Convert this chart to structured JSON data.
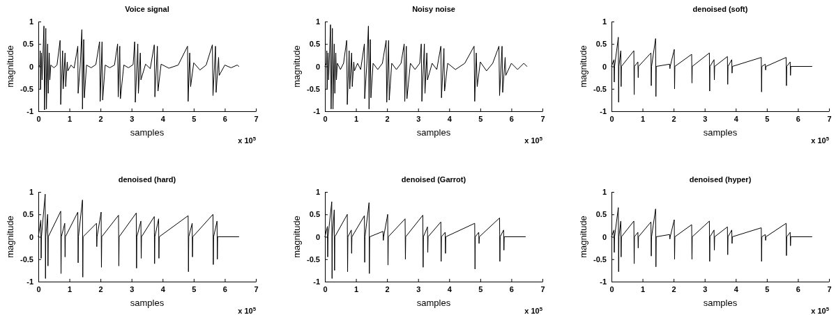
{
  "chart_data": [
    {
      "type": "line",
      "title": "Voice signal",
      "xlabel": "samples",
      "ylabel": "magnitude",
      "annotations": [
        "x 10$^{5}$"
      ],
      "xlim": [
        0,
        7
      ],
      "xticks": [
        0,
        1,
        2,
        3,
        4,
        5,
        6,
        7
      ],
      "ylim": [
        -1,
        1
      ],
      "yticks": [
        -1,
        -0.5,
        0,
        0.5,
        1
      ],
      "x": [
        0,
        0.05,
        0.06,
        0.07,
        0.1,
        0.12,
        0.18,
        0.2,
        0.24,
        0.26,
        0.3,
        0.32,
        0.35,
        0.37,
        0.4,
        0.5,
        0.6,
        0.7,
        0.72,
        0.78,
        0.8,
        0.86,
        0.88,
        0.93,
        0.95,
        1.05,
        1.15,
        1.27,
        1.28,
        1.35,
        1.4,
        1.42,
        1.46,
        1.48,
        1.55,
        1.7,
        1.85,
        1.97,
        1.99,
        2.05,
        2.07,
        2.15,
        2.3,
        2.45,
        2.55,
        2.57,
        2.62,
        2.64,
        2.75,
        2.9,
        3.05,
        3.1,
        3.12,
        3.2,
        3.22,
        3.28,
        3.3,
        3.45,
        3.6,
        3.73,
        3.75,
        3.83,
        3.85,
        3.95,
        4.2,
        4.5,
        4.8,
        4.82,
        4.87,
        4.9,
        5.0,
        5.2,
        5.4,
        5.6,
        5.62,
        5.7,
        5.72,
        5.8,
        5.82,
        6.0,
        6.2,
        6.4,
        6.45
      ],
      "series": [
        {
          "color": "#000000",
          "values": [
            0,
            0.02,
            0.35,
            -0.5,
            0.3,
            -0.3,
            0.9,
            -0.97,
            0.85,
            -0.95,
            0.5,
            -0.6,
            0.3,
            -0.3,
            0.03,
            -0.03,
            0.03,
            0.58,
            -0.85,
            0.35,
            -0.5,
            0.3,
            -0.45,
            0.1,
            -0.1,
            0.03,
            -0.04,
            0.45,
            -0.6,
            0.05,
            0.82,
            -0.95,
            0.6,
            -0.7,
            0.03,
            -0.03,
            0.04,
            0.55,
            -0.78,
            0.55,
            -0.75,
            0.03,
            -0.03,
            0.03,
            0.5,
            -0.68,
            0.45,
            -0.72,
            0.03,
            -0.03,
            0.04,
            0.55,
            -0.8,
            0.5,
            -0.6,
            0.3,
            -0.3,
            0.05,
            -0.05,
            0.48,
            -0.68,
            0.45,
            -0.55,
            0.05,
            -0.04,
            0.03,
            0.45,
            -0.78,
            0.3,
            -0.45,
            0.08,
            -0.08,
            0.03,
            0.48,
            -0.65,
            0.45,
            -0.58,
            0.2,
            -0.2,
            0.03,
            -0.03,
            0.03,
            0
          ]
        }
      ]
    },
    {
      "type": "line",
      "title": "Noisy noise",
      "xlabel": "samples",
      "ylabel": "magnitude",
      "annotations": [
        "x 10$^{5}$"
      ],
      "xlim": [
        0,
        7
      ],
      "xticks": [
        0,
        1,
        2,
        3,
        4,
        5,
        6,
        7
      ],
      "ylim": [
        -1,
        1
      ],
      "yticks": [
        -1,
        -0.5,
        0,
        0.5,
        1
      ],
      "x": [
        0,
        0.05,
        0.06,
        0.07,
        0.1,
        0.12,
        0.18,
        0.2,
        0.24,
        0.26,
        0.3,
        0.32,
        0.35,
        0.37,
        0.4,
        0.5,
        0.6,
        0.7,
        0.72,
        0.78,
        0.8,
        0.86,
        0.88,
        0.93,
        0.95,
        1.05,
        1.15,
        1.27,
        1.28,
        1.35,
        1.4,
        1.42,
        1.46,
        1.48,
        1.55,
        1.7,
        1.85,
        1.97,
        1.99,
        2.05,
        2.07,
        2.15,
        2.3,
        2.45,
        2.55,
        2.57,
        2.62,
        2.64,
        2.75,
        2.9,
        3.05,
        3.1,
        3.12,
        3.2,
        3.22,
        3.28,
        3.3,
        3.45,
        3.6,
        3.73,
        3.75,
        3.83,
        3.85,
        3.95,
        4.2,
        4.5,
        4.8,
        4.82,
        4.87,
        4.9,
        5.0,
        5.2,
        5.4,
        5.6,
        5.62,
        5.7,
        5.72,
        5.8,
        5.82,
        6.0,
        6.2,
        6.4,
        6.5
      ],
      "series": [
        {
          "color": "#000000",
          "values": [
            0,
            0.07,
            0.35,
            -0.5,
            0.3,
            -0.3,
            0.93,
            -0.95,
            0.85,
            -0.95,
            0.5,
            -0.6,
            0.3,
            -0.3,
            0.07,
            -0.07,
            0.07,
            0.58,
            -0.85,
            0.35,
            -0.5,
            0.3,
            -0.45,
            0.1,
            -0.1,
            0.07,
            -0.07,
            0.5,
            -0.72,
            0.07,
            0.9,
            -0.95,
            0.6,
            -0.7,
            0.07,
            -0.07,
            0.07,
            0.58,
            -0.8,
            0.58,
            -0.75,
            0.07,
            -0.07,
            0.07,
            0.5,
            -0.78,
            0.45,
            -0.72,
            0.07,
            -0.07,
            0.07,
            0.5,
            -0.78,
            0.5,
            -0.6,
            0.3,
            -0.3,
            0.07,
            -0.07,
            0.45,
            -0.7,
            0.4,
            -0.55,
            0.07,
            -0.07,
            0.07,
            0.45,
            -0.78,
            0.3,
            -0.45,
            0.1,
            -0.1,
            0.07,
            0.45,
            -0.65,
            0.45,
            -0.58,
            0.2,
            -0.2,
            0.07,
            -0.07,
            0.07,
            0
          ]
        }
      ]
    },
    {
      "type": "line",
      "title": "denoised (soft)",
      "xlabel": "samples",
      "ylabel": "magnitude",
      "annotations": [
        "x 10$^{5}$"
      ],
      "xlim": [
        0,
        7
      ],
      "xticks": [
        0,
        1,
        2,
        3,
        4,
        5,
        6,
        7
      ],
      "ylim": [
        -1,
        1
      ],
      "yticks": [
        -1,
        -0.5,
        0,
        0.5,
        1
      ],
      "x": [
        0,
        0.08,
        0.09,
        0.1,
        0.22,
        0.23,
        0.24,
        0.3,
        0.31,
        0.32,
        0.72,
        0.73,
        0.74,
        0.85,
        0.86,
        0.87,
        1.27,
        1.28,
        1.29,
        1.42,
        1.43,
        1.44,
        1.87,
        1.88,
        1.89,
        2.02,
        2.03,
        2.04,
        2.58,
        2.59,
        2.6,
        3.15,
        3.16,
        3.17,
        3.3,
        3.31,
        3.32,
        3.73,
        3.74,
        3.75,
        3.87,
        3.88,
        3.89,
        4.82,
        4.83,
        4.84,
        4.95,
        4.96,
        4.97,
        5.62,
        5.63,
        5.64,
        5.75,
        5.76,
        5.77,
        6.45
      ],
      "series": [
        {
          "color": "#000000",
          "values": [
            0,
            0.15,
            -0.35,
            0,
            0.65,
            -0.8,
            0,
            0.35,
            -0.45,
            0,
            0.35,
            -0.63,
            0,
            0.1,
            -0.25,
            0,
            0.3,
            -0.43,
            0,
            0.62,
            -0.67,
            0,
            0.05,
            -0.05,
            0,
            0.38,
            -0.5,
            0,
            0.27,
            -0.37,
            0,
            0.3,
            -0.55,
            0,
            0.15,
            -0.3,
            0,
            0.22,
            -0.4,
            0,
            0.15,
            -0.15,
            0,
            0.2,
            -0.57,
            0,
            0.05,
            -0.08,
            0,
            0.2,
            -0.43,
            0,
            0.1,
            -0.2,
            0,
            0
          ]
        }
      ]
    },
    {
      "type": "line",
      "title": "denoised (hard)",
      "xlabel": "samples",
      "ylabel": "magnitude",
      "annotations": [
        "x 10$^{5}$"
      ],
      "xlim": [
        0,
        7
      ],
      "xticks": [
        0,
        1,
        2,
        3,
        4,
        5,
        6,
        7
      ],
      "ylim": [
        -1,
        1
      ],
      "yticks": [
        -1,
        -0.5,
        0,
        0.5,
        1
      ],
      "x": [
        0,
        0.08,
        0.09,
        0.1,
        0.22,
        0.23,
        0.24,
        0.3,
        0.31,
        0.32,
        0.72,
        0.73,
        0.74,
        0.85,
        0.86,
        0.87,
        1.27,
        1.28,
        1.29,
        1.42,
        1.43,
        1.44,
        1.87,
        1.88,
        1.89,
        2.02,
        2.03,
        2.04,
        2.58,
        2.59,
        2.6,
        3.15,
        3.16,
        3.17,
        3.3,
        3.31,
        3.32,
        3.73,
        3.74,
        3.75,
        3.87,
        3.88,
        3.89,
        4.82,
        4.83,
        4.84,
        4.95,
        4.96,
        4.97,
        5.62,
        5.63,
        5.64,
        5.75,
        5.76,
        5.77,
        6.45
      ],
      "series": [
        {
          "color": "#000000",
          "values": [
            0,
            0.37,
            -0.48,
            0,
            0.95,
            -0.93,
            0,
            0.5,
            -0.65,
            0,
            0.57,
            -0.82,
            0,
            0.3,
            -0.45,
            0,
            0.55,
            -0.58,
            0,
            0.82,
            -0.9,
            0,
            0.3,
            -0.22,
            0,
            0.55,
            -0.68,
            0,
            0.48,
            -0.65,
            0,
            0.53,
            -0.7,
            0,
            0.35,
            -0.48,
            0,
            0.45,
            -0.6,
            0,
            0.4,
            -0.48,
            0,
            0.47,
            -0.78,
            0,
            0.3,
            -0.45,
            0,
            0.5,
            -0.62,
            0,
            0.35,
            -0.5,
            0,
            0
          ]
        }
      ]
    },
    {
      "type": "line",
      "title": "denoised (Garrot)",
      "xlabel": "samples",
      "ylabel": "magnitude",
      "annotations": [
        "x 10$^{5}$"
      ],
      "xlim": [
        0,
        7
      ],
      "xticks": [
        0,
        1,
        2,
        3,
        4,
        5,
        6,
        7
      ],
      "ylim": [
        -1,
        1
      ],
      "yticks": [
        -1,
        -0.5,
        0,
        0.5,
        1
      ],
      "x": [
        0,
        0.08,
        0.09,
        0.1,
        0.22,
        0.23,
        0.24,
        0.3,
        0.31,
        0.32,
        0.72,
        0.73,
        0.74,
        0.85,
        0.86,
        0.87,
        1.27,
        1.28,
        1.29,
        1.42,
        1.43,
        1.44,
        1.87,
        1.88,
        1.89,
        2.02,
        2.03,
        2.04,
        2.58,
        2.59,
        2.6,
        3.15,
        3.16,
        3.17,
        3.3,
        3.31,
        3.32,
        3.73,
        3.74,
        3.75,
        3.87,
        3.88,
        3.89,
        4.82,
        4.83,
        4.84,
        4.95,
        4.96,
        4.97,
        5.62,
        5.63,
        5.64,
        5.75,
        5.76,
        5.77,
        6.45
      ],
      "series": [
        {
          "color": "#000000",
          "values": [
            0,
            0.23,
            -0.45,
            0,
            0.78,
            -0.93,
            0,
            0.6,
            -0.75,
            0,
            0.5,
            -0.78,
            0,
            0.15,
            -0.37,
            0,
            0.47,
            -0.57,
            0,
            0.76,
            -0.82,
            0,
            0.12,
            -0.08,
            0,
            0.5,
            -0.63,
            0,
            0.4,
            -0.5,
            0,
            0.48,
            -0.68,
            0,
            0.22,
            -0.35,
            0,
            0.33,
            -0.55,
            0,
            0.1,
            -0.37,
            0,
            0.3,
            -0.72,
            0,
            0.1,
            -0.15,
            0,
            0.42,
            -0.55,
            0,
            0.15,
            -0.3,
            0,
            0
          ]
        }
      ]
    },
    {
      "type": "line",
      "title": "denoised (hyper)",
      "xlabel": "samples",
      "ylabel": "magnitude",
      "annotations": [
        "x 10$^{5}$"
      ],
      "xlim": [
        0,
        7
      ],
      "xticks": [
        0,
        1,
        2,
        3,
        4,
        5,
        6,
        7
      ],
      "ylim": [
        -1,
        1
      ],
      "yticks": [
        -1,
        -0.5,
        0,
        0.5,
        1
      ],
      "x": [
        0,
        0.08,
        0.09,
        0.1,
        0.22,
        0.23,
        0.24,
        0.3,
        0.31,
        0.32,
        0.72,
        0.73,
        0.74,
        0.85,
        0.86,
        0.87,
        1.27,
        1.28,
        1.29,
        1.42,
        1.43,
        1.44,
        1.87,
        1.88,
        1.89,
        2.02,
        2.03,
        2.04,
        2.58,
        2.59,
        2.6,
        3.15,
        3.16,
        3.17,
        3.3,
        3.31,
        3.32,
        3.73,
        3.74,
        3.75,
        3.87,
        3.88,
        3.89,
        4.82,
        4.83,
        4.84,
        4.95,
        4.96,
        4.97,
        5.62,
        5.63,
        5.64,
        5.75,
        5.76,
        5.77,
        6.45
      ],
      "series": [
        {
          "color": "#000000",
          "values": [
            0,
            0.15,
            -0.35,
            0,
            0.65,
            -0.78,
            0,
            0.35,
            -0.45,
            0,
            0.35,
            -0.6,
            0,
            0.1,
            -0.25,
            0,
            0.33,
            -0.43,
            0,
            0.62,
            -0.67,
            0,
            0.05,
            -0.05,
            0,
            0.38,
            -0.5,
            0,
            0.27,
            -0.5,
            0,
            0.35,
            -0.55,
            0,
            0.15,
            -0.3,
            0,
            0.22,
            -0.4,
            0,
            0.15,
            -0.15,
            0,
            0.2,
            -0.55,
            0,
            0.05,
            -0.08,
            0,
            0.3,
            -0.42,
            0,
            0.1,
            -0.2,
            0,
            0
          ]
        }
      ]
    }
  ]
}
